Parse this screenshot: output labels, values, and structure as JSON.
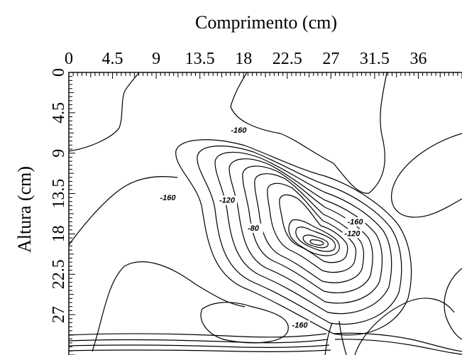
{
  "chart_data": {
    "type": "contour",
    "xlabel": "Comprimento (cm)",
    "ylabel": "Altura (cm)",
    "x_ticks": [
      "0",
      "4.5",
      "9",
      "13.5",
      "18",
      "22.5",
      "27",
      "31.5",
      "36"
    ],
    "y_ticks": [
      "0",
      "4.5",
      "9",
      "13.5",
      "18",
      "22.5",
      "27"
    ],
    "xlim": [
      0,
      40.5
    ],
    "ylim": [
      0,
      31.5
    ],
    "x_axis_position": "top",
    "y_axis_inverted": true,
    "grid": false,
    "contour_step": 5,
    "contour_labels": [
      {
        "text": "-160",
        "x": 17.5,
        "y": 6.5
      },
      {
        "text": "-160",
        "x": 10.2,
        "y": 14.0
      },
      {
        "text": "-120",
        "x": 16.3,
        "y": 14.3
      },
      {
        "text": "-80",
        "x": 19.0,
        "y": 17.4
      },
      {
        "text": "-160",
        "x": 29.5,
        "y": 16.7
      },
      {
        "text": "-120",
        "x": 29.2,
        "y": 18.0
      },
      {
        "text": "-160",
        "x": 23.8,
        "y": 28.2
      }
    ]
  }
}
